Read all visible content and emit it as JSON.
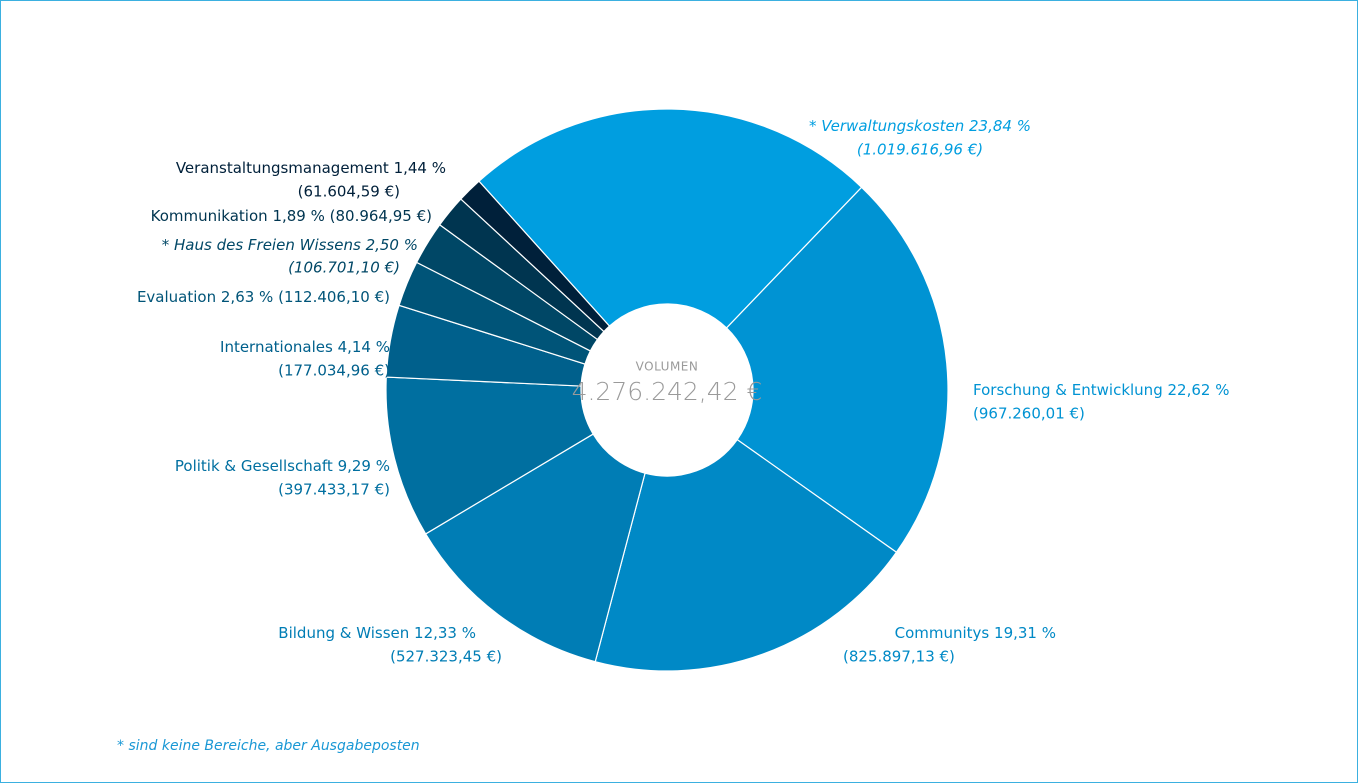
{
  "chart_data": {
    "type": "pie",
    "categories": [
      "* Verwaltungskosten",
      "Forschung & Entwicklung",
      "Communitys",
      "Bildung & Wissen",
      "Politik & Gesellschaft",
      "Internationales",
      "Evaluation",
      "* Haus des Freien Wissens",
      "Kommunikation",
      "Veranstaltungsmanagement"
    ],
    "values": [
      23.84,
      22.62,
      19.31,
      12.33,
      9.29,
      4.14,
      2.63,
      2.5,
      1.89,
      1.44
    ],
    "value_labels": [
      "23,84 %",
      "22,62 %",
      "19,31 %",
      "12,33 %",
      "9,29 %",
      "4,14 %",
      "2,63 %",
      "2,50 %",
      "1,89 %",
      "1,44 %"
    ],
    "amount_labels": [
      "(1.019.616,96 €)",
      "(967.260,01 €)",
      "(825.897,13 €)",
      "(527.323,45 €)",
      "(397.433,17 €)",
      "(177.034,96 €)",
      "(112.406,10 €)",
      "(106.701,10 €)",
      "(80.964,95 €)",
      "(61.604,59 €)"
    ],
    "colors": [
      "#009ee0",
      "#0093d3",
      "#0089c6",
      "#007db5",
      "#006fa0",
      "#00608c",
      "#005478",
      "#004766",
      "#003550",
      "#00203a"
    ],
    "center_label": "VOLUMEN",
    "center_value": "4.276.242,42 €",
    "footnote": "* sind keine Bereiche, aber Ausgabeposten"
  }
}
